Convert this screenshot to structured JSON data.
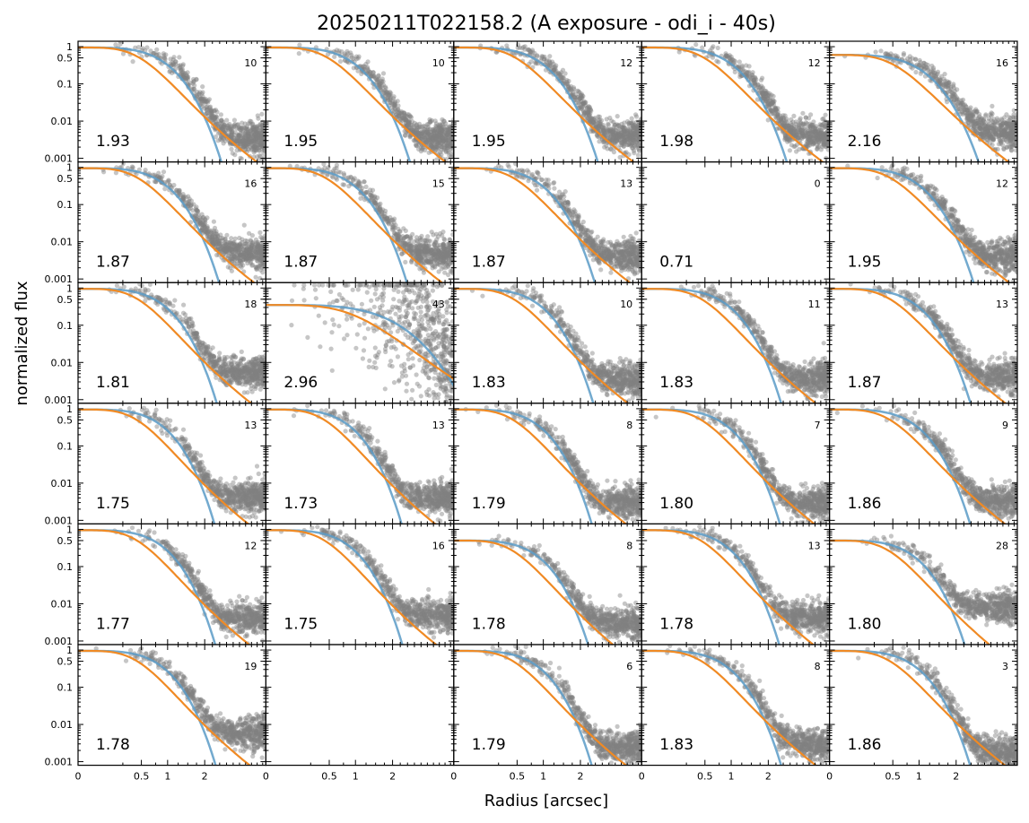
{
  "figure": {
    "title": "20250211T022158.2 (A exposure - odi_i - 40s)",
    "xlabel": "Radius [arcsec]",
    "ylabel": "normalized flux"
  },
  "colors": {
    "points": "#808080",
    "fit_blue": "#5b9bc7",
    "fit_orange": "#f08a24"
  },
  "chart_data": {
    "type": "scatter",
    "title": "20250211T022158.2 (A exposure - odi_i - 40s)",
    "xlabel": "Radius [arcsec]",
    "ylabel": "normalized flux",
    "y_scale": "log",
    "ylim": [
      0.0008,
      1.4
    ],
    "x_scale": "sqrt",
    "xlim": [
      0,
      4.4
    ],
    "x_ticks": [
      0,
      0.5,
      1,
      2
    ],
    "x_tick_labels": [
      "0",
      "0.5",
      "1",
      "2"
    ],
    "y_ticks": [
      1,
      0.5,
      0.1,
      0.01,
      0.001
    ],
    "y_tick_labels": [
      "1",
      "0.5",
      "0.1",
      "0.01",
      "0.001"
    ],
    "grid": false,
    "rows": 6,
    "cols": 5,
    "panels": [
      {
        "row": 0,
        "col": 0,
        "fwhm": "1.93",
        "count": "10",
        "empty": false
      },
      {
        "row": 0,
        "col": 1,
        "fwhm": "1.95",
        "count": "10",
        "empty": false
      },
      {
        "row": 0,
        "col": 2,
        "fwhm": "1.95",
        "count": "12",
        "empty": false
      },
      {
        "row": 0,
        "col": 3,
        "fwhm": "1.98",
        "count": "12",
        "empty": false
      },
      {
        "row": 0,
        "col": 4,
        "fwhm": "2.16",
        "count": "16",
        "empty": false
      },
      {
        "row": 1,
        "col": 0,
        "fwhm": "1.87",
        "count": "16",
        "empty": false
      },
      {
        "row": 1,
        "col": 1,
        "fwhm": "1.87",
        "count": "15",
        "empty": false
      },
      {
        "row": 1,
        "col": 2,
        "fwhm": "1.87",
        "count": "13",
        "empty": false
      },
      {
        "row": 1,
        "col": 3,
        "fwhm": "0.71",
        "count": "0",
        "empty": true
      },
      {
        "row": 1,
        "col": 4,
        "fwhm": "1.95",
        "count": "12",
        "empty": false
      },
      {
        "row": 2,
        "col": 0,
        "fwhm": "1.81",
        "count": "18",
        "empty": false
      },
      {
        "row": 2,
        "col": 1,
        "fwhm": "2.96",
        "count": "43",
        "empty": false
      },
      {
        "row": 2,
        "col": 2,
        "fwhm": "1.83",
        "count": "10",
        "empty": false
      },
      {
        "row": 2,
        "col": 3,
        "fwhm": "1.83",
        "count": "11",
        "empty": false
      },
      {
        "row": 2,
        "col": 4,
        "fwhm": "1.87",
        "count": "13",
        "empty": false
      },
      {
        "row": 3,
        "col": 0,
        "fwhm": "1.75",
        "count": "13",
        "empty": false
      },
      {
        "row": 3,
        "col": 1,
        "fwhm": "1.73",
        "count": "13",
        "empty": false
      },
      {
        "row": 3,
        "col": 2,
        "fwhm": "1.79",
        "count": "8",
        "empty": false
      },
      {
        "row": 3,
        "col": 3,
        "fwhm": "1.80",
        "count": "7",
        "empty": false
      },
      {
        "row": 3,
        "col": 4,
        "fwhm": "1.86",
        "count": "9",
        "empty": false
      },
      {
        "row": 4,
        "col": 0,
        "fwhm": "1.77",
        "count": "12",
        "empty": false
      },
      {
        "row": 4,
        "col": 1,
        "fwhm": "1.75",
        "count": "16",
        "empty": false
      },
      {
        "row": 4,
        "col": 2,
        "fwhm": "1.78",
        "count": "8",
        "empty": false
      },
      {
        "row": 4,
        "col": 3,
        "fwhm": "1.78",
        "count": "13",
        "empty": false
      },
      {
        "row": 4,
        "col": 4,
        "fwhm": "1.80",
        "count": "28",
        "empty": false
      },
      {
        "row": 5,
        "col": 0,
        "fwhm": "1.78",
        "count": "19",
        "empty": false
      },
      {
        "row": 5,
        "col": 1,
        "fwhm": "",
        "count": "",
        "empty": true
      },
      {
        "row": 5,
        "col": 2,
        "fwhm": "1.79",
        "count": "6",
        "empty": false
      },
      {
        "row": 5,
        "col": 3,
        "fwhm": "1.83",
        "count": "8",
        "empty": false
      },
      {
        "row": 5,
        "col": 4,
        "fwhm": "1.86",
        "count": "3",
        "empty": false
      }
    ]
  }
}
